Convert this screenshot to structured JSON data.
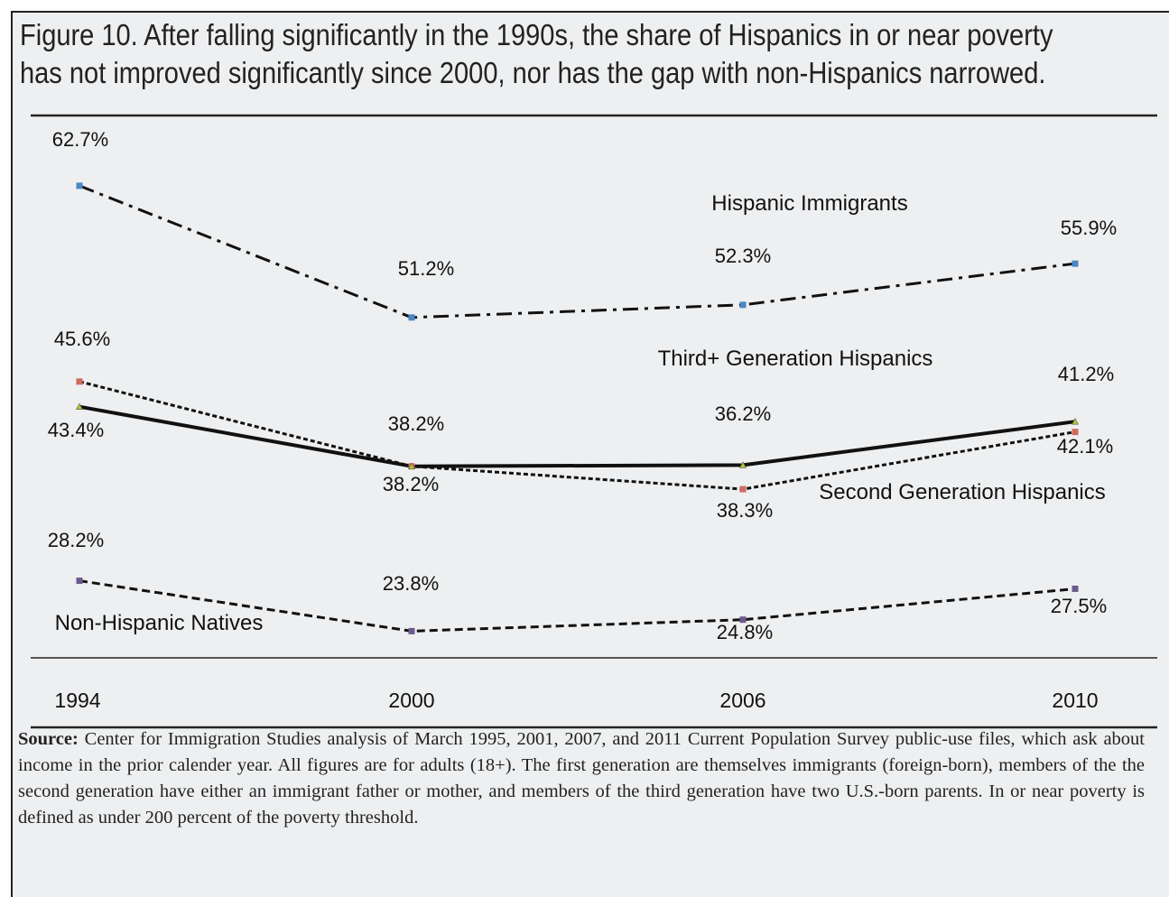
{
  "figure": {
    "title_lines": [
      "Figure 10. After falling significantly in the 1990s, the share of Hispanics in or near poverty",
      "has not improved significantly since 2000, nor has the gap with non-Hispanics narrowed."
    ],
    "source_label": "Source:",
    "source_text": "Center for Immigration Studies analysis of March 1995, 2001, 2007, and 2011 Current Population Survey public-use files, which ask about income in the prior calender year. All figures are for adults (18+). The first generation are themselves immigrants (foreign-born), members of the the second generation have either an immigrant father or mother, and members of the third generation have two U.S.-born parents. In or near poverty is defined as under 200 percent of the poverty threshold."
  },
  "chart_data": {
    "type": "line",
    "categories": [
      "1994",
      "2000",
      "2006",
      "2010"
    ],
    "ylim": [
      20,
      65
    ],
    "grid": false,
    "series": [
      {
        "name": "Hispanic Immigrants",
        "values": [
          62.7,
          51.2,
          52.3,
          55.9
        ],
        "labels": [
          "62.7%",
          "51.2%",
          "52.3%",
          "55.9%"
        ],
        "style": "dash-dot",
        "marker_color": "#4a86c5"
      },
      {
        "name": "Second Generation Hispanics",
        "values": [
          45.6,
          38.2,
          36.2,
          41.2
        ],
        "labels": [
          "45.6%",
          "38.2%",
          "36.2%",
          "41.2%"
        ],
        "style": "short-dash",
        "marker_color": "#d06a5e"
      },
      {
        "name": "Third+ Generation Hispanics",
        "values": [
          43.4,
          38.2,
          38.3,
          42.1
        ],
        "labels": [
          "43.4%",
          "38.2%",
          "38.3%",
          "42.1%"
        ],
        "style": "solid",
        "marker_color": "#b5c734"
      },
      {
        "name": "Non-Hispanic Natives",
        "values": [
          28.2,
          23.8,
          24.8,
          27.5
        ],
        "labels": [
          "28.2%",
          "23.8%",
          "24.8%",
          "27.5%"
        ],
        "style": "dash",
        "marker_color": "#6b5a8e"
      }
    ]
  }
}
